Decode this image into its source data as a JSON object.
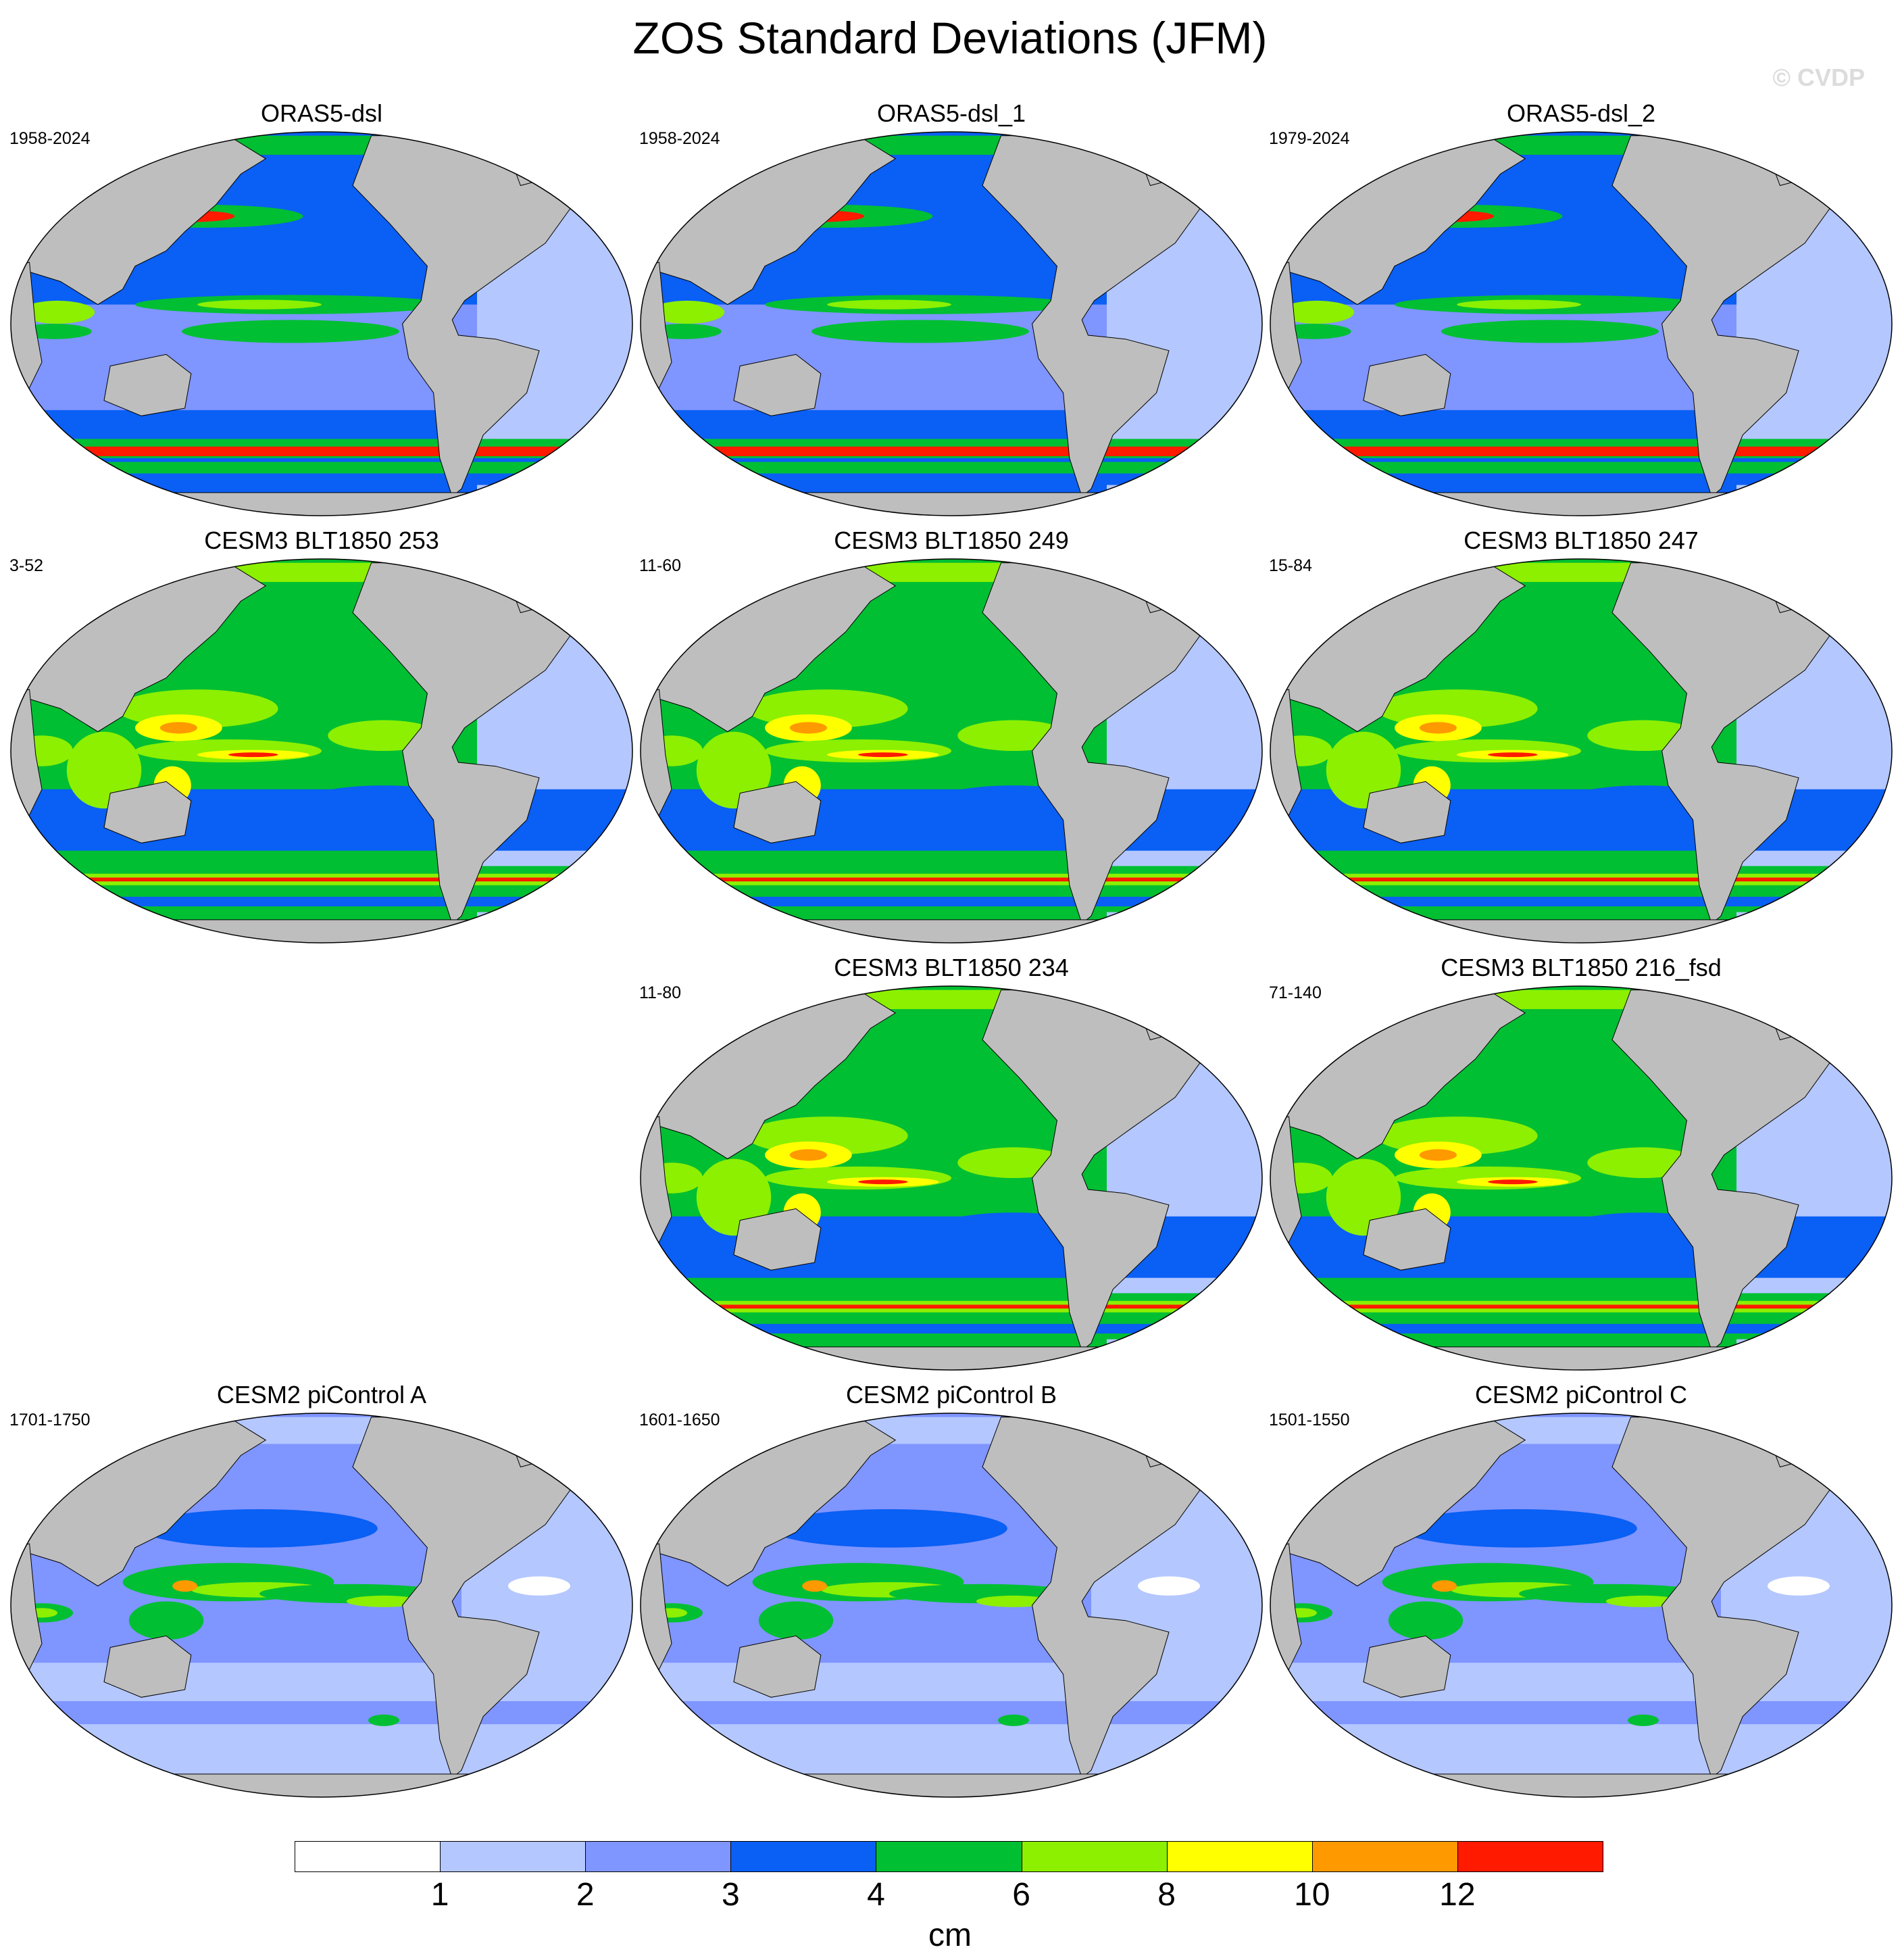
{
  "title": "ZOS Standard Deviations (JFM)",
  "watermark": "© CVDP",
  "colorbar": {
    "unit": "cm",
    "ticks": [
      "1",
      "2",
      "3",
      "4",
      "6",
      "8",
      "10",
      "12"
    ],
    "colors": [
      "#ffffff",
      "#b4c7ff",
      "#7f95ff",
      "#0a5ff4",
      "#00bf33",
      "#8cf000",
      "#ffff00",
      "#ff9900",
      "#ff1a00"
    ]
  },
  "panels": [
    {
      "title": "ORAS5-dsl",
      "period": "1958-2024"
    },
    {
      "title": "ORAS5-dsl_1",
      "period": "1958-2024"
    },
    {
      "title": "ORAS5-dsl_2",
      "period": "1979-2024"
    },
    {
      "title": "CESM3 BLT1850 253",
      "period": "3-52"
    },
    {
      "title": "CESM3 BLT1850 249",
      "period": "11-60"
    },
    {
      "title": "CESM3 BLT1850 247",
      "period": "15-84"
    },
    {
      "title": "CESM3 BLT1850 234",
      "period": "11-80"
    },
    {
      "title": "CESM3 BLT1850 216_fsd",
      "period": "71-140"
    },
    {
      "title": "CESM2 piControl A",
      "period": "1701-1750"
    },
    {
      "title": "CESM2 piControl B",
      "period": "1601-1650"
    },
    {
      "title": "CESM2 piControl C",
      "period": "1501-1550"
    }
  ]
}
